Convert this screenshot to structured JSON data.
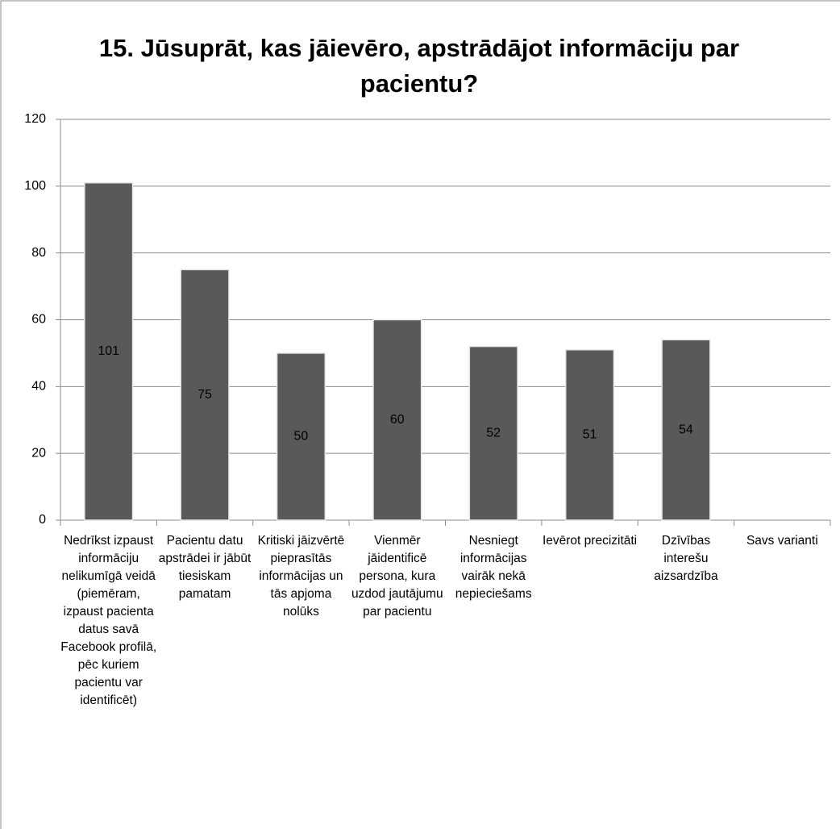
{
  "chart_data": {
    "type": "bar",
    "title": "15. Jūsuprāt, kas jāievēro, apstrādājot informāciju par pacientu?",
    "categories": [
      "Nedrīkst izpaust informāciju nelikumīgā veidā (piemēram, izpaust pacienta datus savā Facebook profilā, pēc kuriem pacientu var identificēt)",
      "Pacientu datu apstrādei ir jābūt tiesiskam pamatam",
      "Kritiski jāizvērtē pieprasītās informācijas un tās apjoma nolūks",
      "Vienmēr jāidentificē persona, kura uzdod jautājumu par pacientu",
      "Nesniegt informācijas vairāk nekā nepieciešams",
      "Ievērot precizitāti",
      "Dzīvības interešu aizsardzība",
      "Savs varianti"
    ],
    "values": [
      101,
      75,
      50,
      60,
      52,
      51,
      54,
      null
    ],
    "color": "#595959",
    "ylim": [
      0,
      120
    ],
    "yticks": [
      0,
      20,
      40,
      60,
      80,
      100,
      120
    ],
    "grid": true
  }
}
